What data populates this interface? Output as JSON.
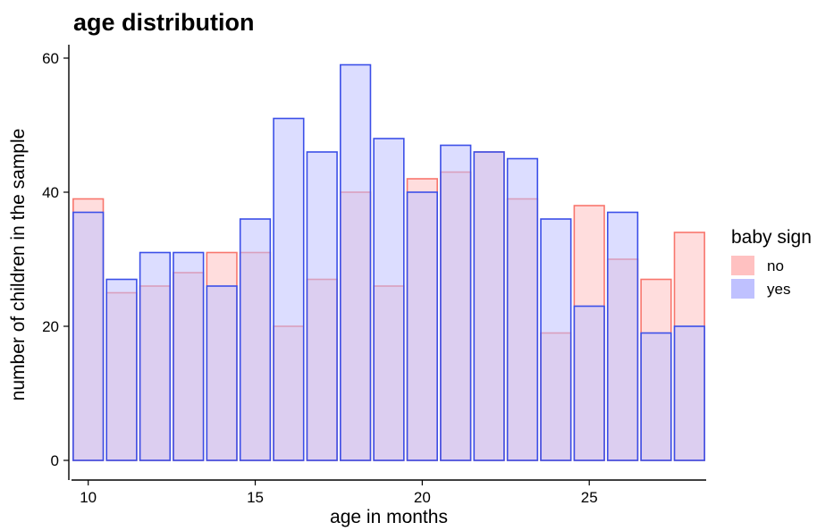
{
  "chart_data": {
    "type": "bar",
    "title": "age distribution",
    "xlabel": "age in months",
    "ylabel": "number of children in the sample",
    "x": [
      10,
      11,
      12,
      13,
      14,
      15,
      16,
      17,
      18,
      19,
      20,
      21,
      22,
      23,
      24,
      25,
      26,
      27,
      28
    ],
    "series": [
      {
        "name": "no",
        "color": "#F8766D",
        "fill": "#FFC1C1",
        "values": [
          39,
          25,
          26,
          28,
          31,
          31,
          20,
          27,
          40,
          26,
          42,
          43,
          46,
          39,
          19,
          38,
          30,
          27,
          34
        ]
      },
      {
        "name": "yes",
        "color": "#3B4FE8",
        "fill": "#BFC1FF",
        "values": [
          37,
          27,
          31,
          31,
          26,
          36,
          51,
          46,
          59,
          48,
          40,
          47,
          46,
          45,
          36,
          23,
          37,
          19,
          20
        ]
      }
    ],
    "overlap": "identity",
    "xlim": [
      9.5,
      28.5
    ],
    "ylim": [
      0,
      60
    ],
    "xticks": [
      10,
      15,
      20,
      25
    ],
    "yticks": [
      0,
      20,
      40,
      60
    ],
    "legend": {
      "title": "baby sign",
      "position": "right"
    },
    "grid": false
  }
}
